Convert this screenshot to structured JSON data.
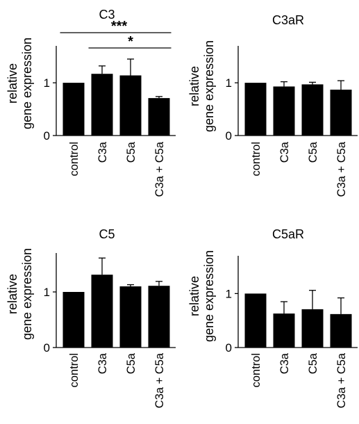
{
  "chart_data": [
    {
      "type": "bar",
      "title": "C3",
      "ylabel": "relative\ngene expression",
      "ylim": [
        0,
        1.7
      ],
      "yticks": [
        0,
        1
      ],
      "categories": [
        "control",
        "C3a",
        "C5a",
        "C3a + C5a"
      ],
      "values": [
        1.0,
        1.17,
        1.14,
        0.71
      ],
      "errors": [
        0.0,
        0.15,
        0.31,
        0.03
      ],
      "significance": [
        {
          "label": "***",
          "from": 0,
          "to": 3
        },
        {
          "label": "*",
          "from": 1,
          "to": 3
        }
      ]
    },
    {
      "type": "bar",
      "title": "C3aR",
      "ylabel": "relative\ngene expression",
      "ylim": [
        0,
        1.7
      ],
      "yticks": [
        0,
        1
      ],
      "categories": [
        "control",
        "C3a",
        "C5a",
        "C3a + C5a"
      ],
      "values": [
        1.0,
        0.93,
        0.97,
        0.87
      ],
      "errors": [
        0.0,
        0.09,
        0.04,
        0.17
      ],
      "significance": []
    },
    {
      "type": "bar",
      "title": "C5",
      "ylabel": "relative\ngene expression",
      "ylim": [
        0,
        1.7
      ],
      "yticks": [
        0,
        1
      ],
      "categories": [
        "control",
        "C3a",
        "C5a",
        "C3a + C5a"
      ],
      "values": [
        1.0,
        1.31,
        1.1,
        1.11
      ],
      "errors": [
        0.0,
        0.3,
        0.03,
        0.08
      ],
      "significance": []
    },
    {
      "type": "bar",
      "title": "C5aR",
      "ylabel": "relative\ngene expression",
      "ylim": [
        0,
        1.7
      ],
      "yticks": [
        0,
        1
      ],
      "categories": [
        "control",
        "C3a",
        "C5a",
        "C3a + C5a"
      ],
      "values": [
        1.0,
        0.63,
        0.71,
        0.62
      ],
      "errors": [
        0.0,
        0.22,
        0.35,
        0.3
      ],
      "significance": []
    }
  ]
}
